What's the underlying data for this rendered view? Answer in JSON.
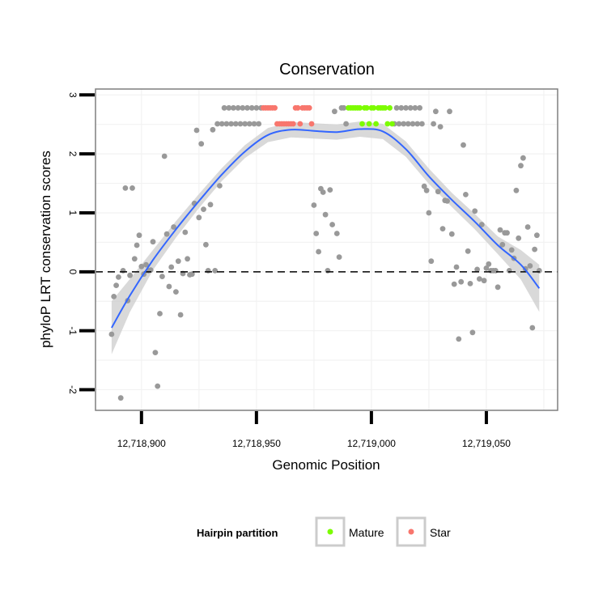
{
  "chart_data": {
    "type": "scatter",
    "title": "Conservation",
    "xlabel": "Genomic Position",
    "ylabel": "phyloP LRT conservation scores",
    "xlim": [
      12718880,
      12719081
    ],
    "ylim": [
      -2.35,
      3.1
    ],
    "x_ticks": [
      {
        "value": 12718900,
        "label": "12,718,900"
      },
      {
        "value": 12718950,
        "label": "12,718,950"
      },
      {
        "value": 12719000,
        "label": "12,719,000"
      },
      {
        "value": 12719050,
        "label": "12,719,050"
      }
    ],
    "y_ticks": [
      {
        "value": -2,
        "label": "-2"
      },
      {
        "value": -1,
        "label": "-1"
      },
      {
        "value": 0,
        "label": "0"
      },
      {
        "value": 1,
        "label": "1"
      },
      {
        "value": 2,
        "label": "2"
      },
      {
        "value": 3,
        "label": "3"
      }
    ],
    "reference_line": {
      "y": 0,
      "style": "dashed"
    },
    "legend": {
      "title": "Hairpin partition",
      "position": "bottom",
      "entries": [
        {
          "name": "Mature",
          "color": "#7CFC00"
        },
        {
          "name": "Star",
          "color": "#F8766D"
        }
      ]
    },
    "colors": {
      "other": "#999999",
      "Mature": "#7CFC00",
      "Star": "#F8766D",
      "smooth": "#3366FF",
      "ribbon": "#cccccc"
    },
    "series": [
      {
        "name": "Other",
        "points": [
          [
            12718887,
            -1.06
          ],
          [
            12718888,
            -0.42
          ],
          [
            12718889,
            -0.23
          ],
          [
            12718890,
            -0.09
          ],
          [
            12718891,
            -2.14
          ],
          [
            12718892,
            0.02
          ],
          [
            12718893,
            1.42
          ],
          [
            12718894,
            -0.49
          ],
          [
            12718895,
            -0.06
          ],
          [
            12718896,
            1.42
          ],
          [
            12718897,
            0.22
          ],
          [
            12718898,
            0.45
          ],
          [
            12718899,
            0.62
          ],
          [
            12718900,
            0.09
          ],
          [
            12718901,
            -0.04
          ],
          [
            12718902,
            0.12
          ],
          [
            12718903,
            0.02
          ],
          [
            12718904,
            0.03
          ],
          [
            12718905,
            0.51
          ],
          [
            12718906,
            -1.37
          ],
          [
            12718907,
            -1.94
          ],
          [
            12718908,
            -0.71
          ],
          [
            12718909,
            -0.08
          ],
          [
            12718910,
            1.96
          ],
          [
            12718911,
            0.64
          ],
          [
            12718912,
            -0.25
          ],
          [
            12718913,
            0.08
          ],
          [
            12718914,
            0.76
          ],
          [
            12718915,
            -0.34
          ],
          [
            12718916,
            0.18
          ],
          [
            12718917,
            -0.73
          ],
          [
            12718918,
            -0.03
          ],
          [
            12718919,
            0.67
          ],
          [
            12718920,
            0.22
          ],
          [
            12718921,
            -0.05
          ],
          [
            12718922,
            -0.04
          ],
          [
            12718923,
            1.16
          ],
          [
            12718924,
            2.4
          ],
          [
            12718925,
            0.92
          ],
          [
            12718926,
            2.17
          ],
          [
            12718927,
            1.06
          ],
          [
            12718928,
            0.46
          ],
          [
            12718929,
            0.02
          ],
          [
            12718930,
            1.14
          ],
          [
            12718931,
            2.41
          ],
          [
            12718932,
            0.02
          ],
          [
            12718933,
            2.51
          ],
          [
            12718934,
            1.46
          ],
          [
            12718935,
            2.51
          ],
          [
            12718936,
            2.78
          ],
          [
            12718937,
            2.51
          ],
          [
            12718938,
            2.78
          ],
          [
            12718939,
            2.51
          ],
          [
            12718940,
            2.78
          ],
          [
            12718941,
            2.51
          ],
          [
            12718942,
            2.78
          ],
          [
            12718943,
            2.51
          ],
          [
            12718944,
            2.78
          ],
          [
            12718945,
            2.51
          ],
          [
            12718946,
            2.78
          ],
          [
            12718947,
            2.51
          ],
          [
            12718948,
            2.78
          ],
          [
            12718949,
            2.51
          ],
          [
            12718950,
            2.78
          ],
          [
            12718951,
            2.51
          ],
          [
            12718952,
            2.78
          ],
          [
            12718975,
            1.13
          ],
          [
            12718976,
            0.65
          ],
          [
            12718977,
            0.34
          ],
          [
            12718978,
            1.41
          ],
          [
            12718979,
            1.35
          ],
          [
            12718980,
            0.97
          ],
          [
            12718981,
            0.02
          ],
          [
            12718982,
            1.39
          ],
          [
            12718983,
            0.8
          ],
          [
            12718984,
            2.72
          ],
          [
            12718985,
            0.65
          ],
          [
            12718986,
            0.25
          ],
          [
            12718987,
            2.78
          ],
          [
            12718988,
            2.78
          ],
          [
            12718989,
            2.51
          ],
          [
            12719010,
            2.51
          ],
          [
            12719011,
            2.78
          ],
          [
            12719012,
            2.51
          ],
          [
            12719013,
            2.78
          ],
          [
            12719014,
            2.51
          ],
          [
            12719015,
            2.78
          ],
          [
            12719016,
            2.51
          ],
          [
            12719017,
            2.78
          ],
          [
            12719018,
            2.51
          ],
          [
            12719019,
            2.78
          ],
          [
            12719020,
            2.51
          ],
          [
            12719021,
            2.78
          ],
          [
            12719022,
            2.51
          ],
          [
            12719023,
            1.45
          ],
          [
            12719024,
            1.38
          ],
          [
            12719025,
            1.0
          ],
          [
            12719026,
            0.18
          ],
          [
            12719027,
            2.51
          ],
          [
            12719028,
            2.72
          ],
          [
            12719029,
            1.36
          ],
          [
            12719030,
            2.46
          ],
          [
            12719031,
            0.73
          ],
          [
            12719032,
            1.21
          ],
          [
            12719033,
            1.2
          ],
          [
            12719034,
            2.72
          ],
          [
            12719035,
            0.64
          ],
          [
            12719036,
            -0.21
          ],
          [
            12719037,
            0.08
          ],
          [
            12719038,
            -1.14
          ],
          [
            12719039,
            -0.17
          ],
          [
            12719040,
            2.15
          ],
          [
            12719041,
            1.31
          ],
          [
            12719042,
            0.35
          ],
          [
            12719043,
            -0.2
          ],
          [
            12719044,
            -1.03
          ],
          [
            12719045,
            1.03
          ],
          [
            12719046,
            0.04
          ],
          [
            12719047,
            -0.12
          ],
          [
            12719048,
            0.8
          ],
          [
            12719049,
            -0.15
          ],
          [
            12719050,
            0.06
          ],
          [
            12719051,
            0.13
          ],
          [
            12719052,
            0.02
          ],
          [
            12719053,
            0.02
          ],
          [
            12719054,
            0.02
          ],
          [
            12719055,
            -0.26
          ],
          [
            12719056,
            0.71
          ],
          [
            12719057,
            0.46
          ],
          [
            12719058,
            0.66
          ],
          [
            12719059,
            0.66
          ],
          [
            12719060,
            0.02
          ],
          [
            12719061,
            0.37
          ],
          [
            12719062,
            0.23
          ],
          [
            12719063,
            1.38
          ],
          [
            12719064,
            0.57
          ],
          [
            12719065,
            1.8
          ],
          [
            12719066,
            1.93
          ],
          [
            12719067,
            0.05
          ],
          [
            12719068,
            0.76
          ],
          [
            12719069,
            0.1
          ],
          [
            12719070,
            -0.95
          ],
          [
            12719071,
            0.38
          ],
          [
            12719072,
            0.62
          ],
          [
            12719073,
            0.02
          ]
        ]
      },
      {
        "name": "Star",
        "points": [
          [
            12718953,
            2.78
          ],
          [
            12718954,
            2.78
          ],
          [
            12718955,
            2.78
          ],
          [
            12718956,
            2.78
          ],
          [
            12718957,
            2.78
          ],
          [
            12718958,
            2.78
          ],
          [
            12718959,
            2.51
          ],
          [
            12718960,
            2.51
          ],
          [
            12718961,
            2.51
          ],
          [
            12718962,
            2.51
          ],
          [
            12718963,
            2.51
          ],
          [
            12718964,
            2.51
          ],
          [
            12718965,
            2.51
          ],
          [
            12718966,
            2.51
          ],
          [
            12718967,
            2.78
          ],
          [
            12718968,
            2.78
          ],
          [
            12718969,
            2.51
          ],
          [
            12718970,
            2.78
          ],
          [
            12718971,
            2.78
          ],
          [
            12718972,
            2.78
          ],
          [
            12718973,
            2.78
          ],
          [
            12718974,
            2.51
          ]
        ]
      },
      {
        "name": "Mature",
        "points": [
          [
            12718990,
            2.78
          ],
          [
            12718991,
            2.78
          ],
          [
            12718992,
            2.78
          ],
          [
            12718993,
            2.78
          ],
          [
            12718994,
            2.78
          ],
          [
            12718995,
            2.78
          ],
          [
            12718996,
            2.51
          ],
          [
            12718997,
            2.78
          ],
          [
            12718998,
            2.78
          ],
          [
            12718999,
            2.51
          ],
          [
            12719000,
            2.78
          ],
          [
            12719001,
            2.78
          ],
          [
            12719002,
            2.51
          ],
          [
            12719003,
            2.78
          ],
          [
            12719004,
            2.78
          ],
          [
            12719005,
            2.78
          ],
          [
            12719006,
            2.78
          ],
          [
            12719007,
            2.51
          ],
          [
            12719008,
            2.78
          ],
          [
            12719009,
            2.51
          ]
        ]
      }
    ],
    "smooth": {
      "x": [
        12718887,
        12718895,
        12718905,
        12718915,
        12718925,
        12718935,
        12718945,
        12718955,
        12718965,
        12718975,
        12718985,
        12718995,
        12719005,
        12719015,
        12719025,
        12719035,
        12719045,
        12719055,
        12719065,
        12719073
      ],
      "y": [
        -0.95,
        -0.4,
        0.2,
        0.72,
        1.2,
        1.65,
        2.04,
        2.32,
        2.41,
        2.39,
        2.37,
        2.42,
        2.38,
        2.08,
        1.62,
        1.22,
        0.85,
        0.45,
        0.12,
        -0.28
      ],
      "se": [
        0.45,
        0.28,
        0.17,
        0.14,
        0.12,
        0.11,
        0.11,
        0.12,
        0.13,
        0.13,
        0.13,
        0.13,
        0.13,
        0.13,
        0.13,
        0.12,
        0.13,
        0.15,
        0.25,
        0.4
      ]
    }
  }
}
